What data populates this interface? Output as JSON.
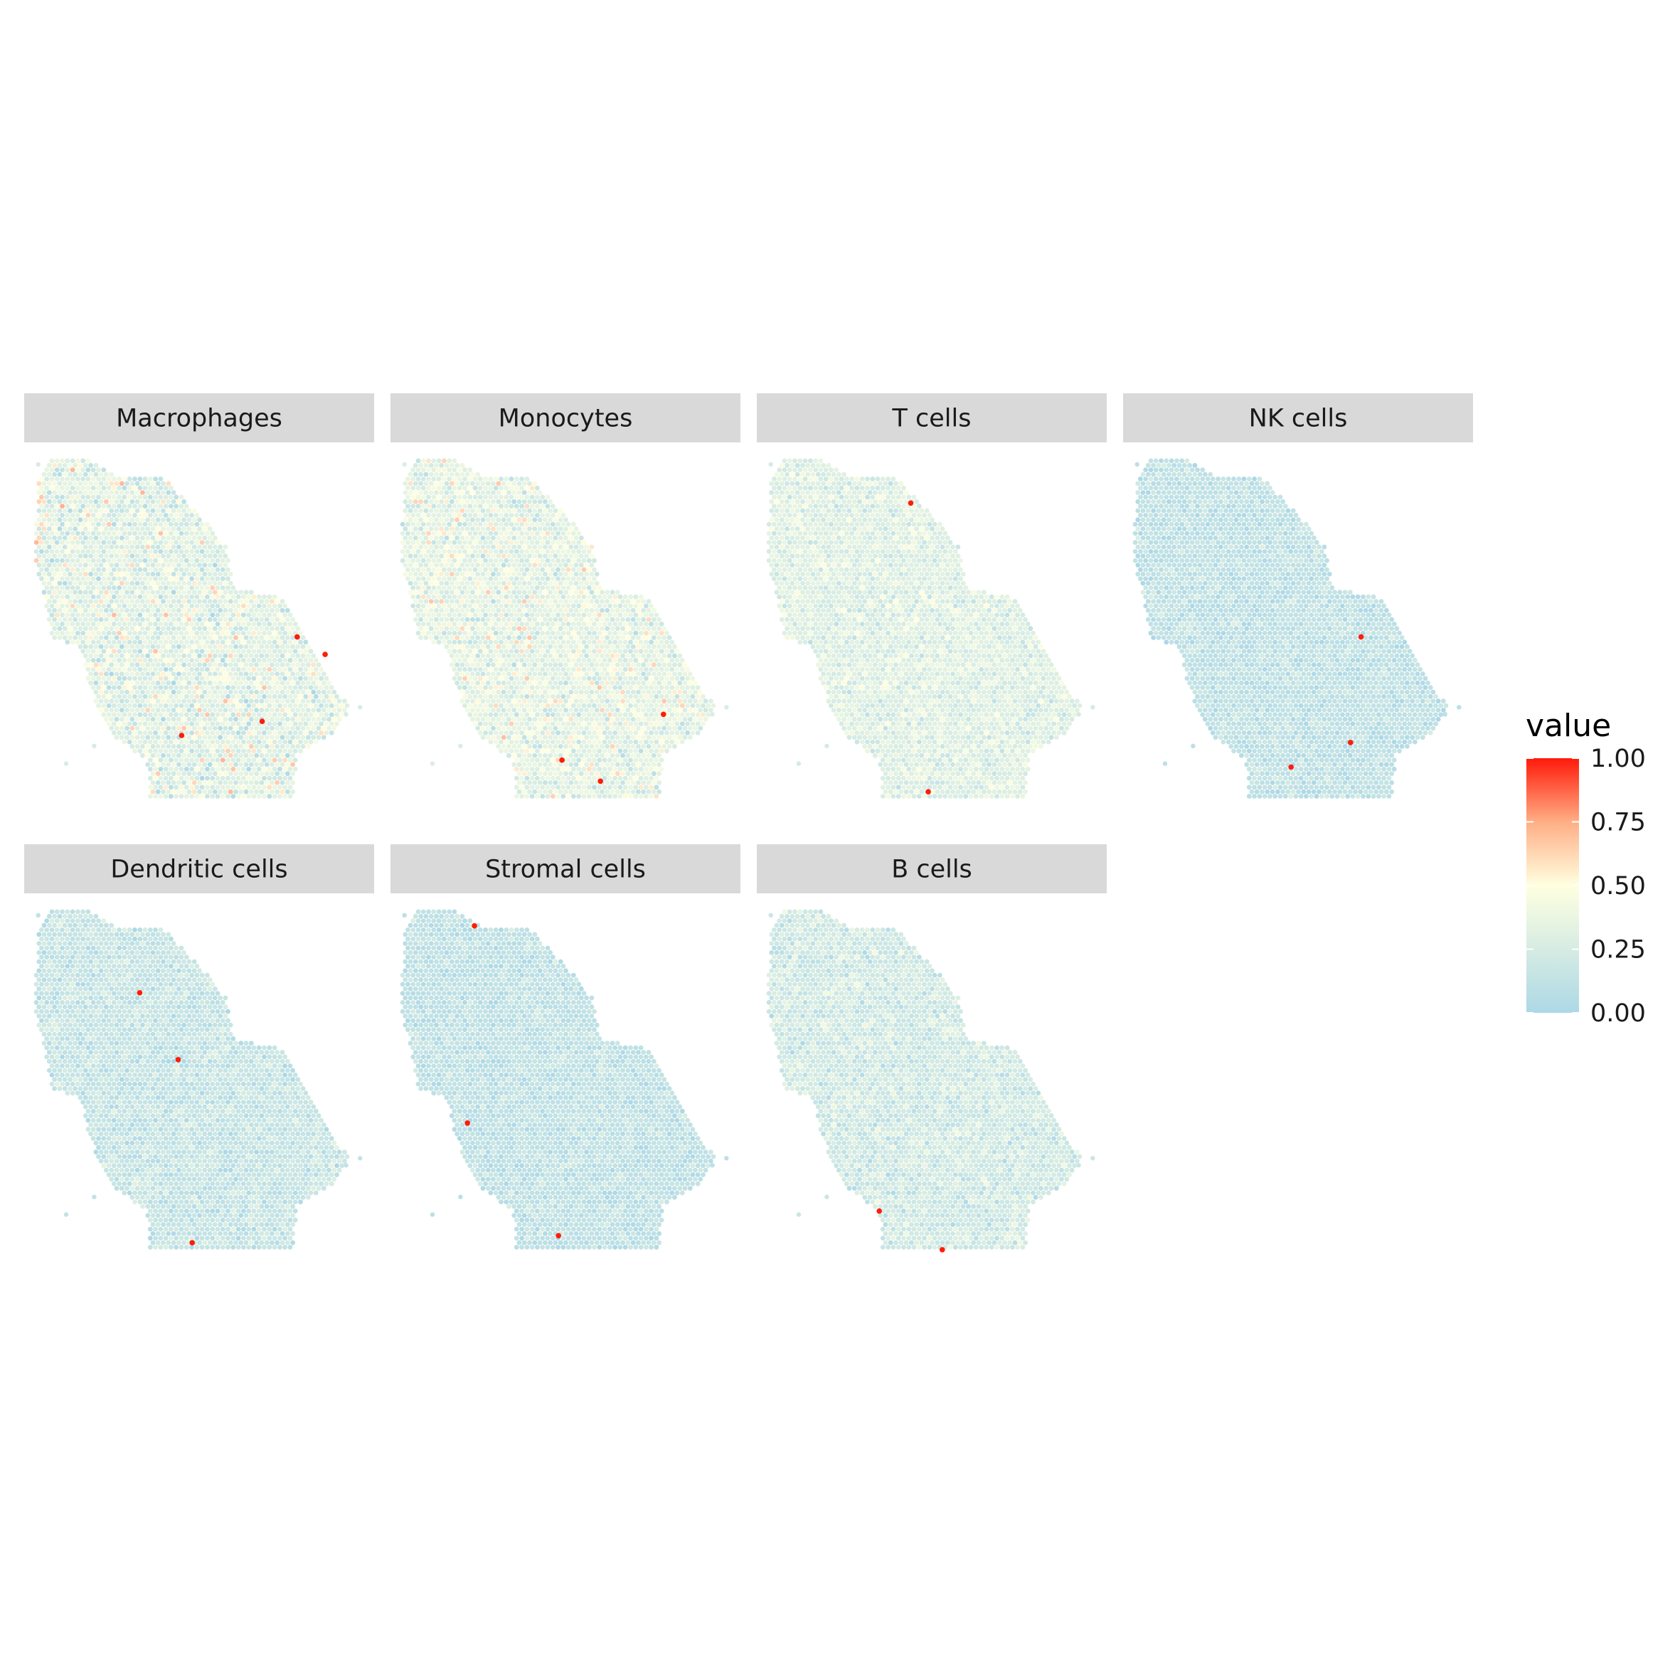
{
  "chart_data": {
    "type": "scatter",
    "facets": [
      "Macrophages",
      "Monocytes",
      "T cells",
      "NK cells",
      "Dendritic cells",
      "Stromal cells",
      "B cells"
    ],
    "legend": {
      "title": "value",
      "position": "right",
      "ticks": [
        "1.00",
        "0.75",
        "0.50",
        "0.25",
        "0.00"
      ],
      "range": [
        0,
        1
      ],
      "colors": {
        "low": "#add8e6",
        "mid": "#ffffe0",
        "high": "#ff0000"
      }
    },
    "facet_hotspots": {
      "Macrophages": [
        [
          0.78,
          0.52
        ],
        [
          0.68,
          0.76
        ],
        [
          0.86,
          0.57
        ],
        [
          0.45,
          0.8
        ]
      ],
      "Monocytes": [
        [
          0.6,
          0.93
        ],
        [
          0.78,
          0.74
        ],
        [
          0.49,
          0.87
        ]
      ],
      "T cells": [
        [
          0.49,
          0.96
        ],
        [
          0.44,
          0.14
        ]
      ],
      "NK cells": [
        [
          0.68,
          0.52
        ],
        [
          0.48,
          0.89
        ],
        [
          0.65,
          0.82
        ]
      ],
      "Dendritic cells": [
        [
          0.33,
          0.25
        ],
        [
          0.44,
          0.44
        ],
        [
          0.48,
          0.96
        ]
      ],
      "Stromal cells": [
        [
          0.24,
          0.06
        ],
        [
          0.22,
          0.62
        ],
        [
          0.48,
          0.94
        ]
      ],
      "B cells": [
        [
          0.35,
          0.87
        ],
        [
          0.53,
          0.98
        ]
      ]
    },
    "grid": false,
    "axes": "none"
  }
}
